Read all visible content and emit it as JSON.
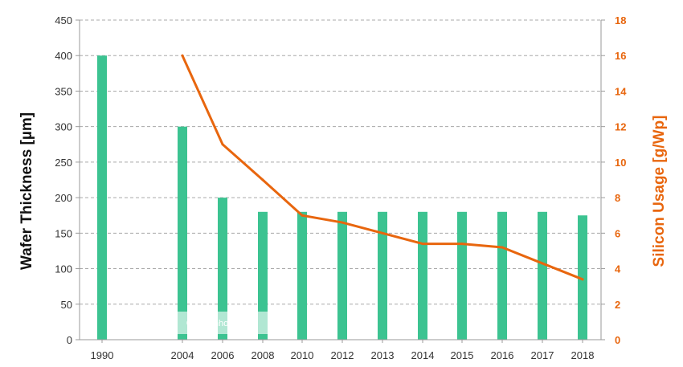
{
  "chart_data": {
    "type": "bar",
    "categories": [
      "1990",
      "2004",
      "2006",
      "2008",
      "2010",
      "2012",
      "2013",
      "2014",
      "2015",
      "2016",
      "2017",
      "2018"
    ],
    "series": [
      {
        "name": "Wafer Thickness [µm]",
        "type": "bar",
        "axis": "left",
        "values": [
          400,
          300,
          200,
          180,
          180,
          180,
          180,
          180,
          180,
          180,
          180,
          175
        ]
      },
      {
        "name": "Silicon Usage [g/Wp]",
        "type": "line",
        "axis": "right",
        "values": [
          null,
          16,
          11,
          9,
          7,
          6.6,
          6,
          5.4,
          5.4,
          5.2,
          4.3,
          3.4
        ]
      }
    ],
    "ylabel": "Wafer Thickness [µm]",
    "y2label": "Silicon Usage [g/Wp]",
    "ylim": [
      0,
      450
    ],
    "y2lim": [
      0,
      18
    ],
    "yticks": [
      "0",
      "50",
      "100",
      "150",
      "200",
      "250",
      "300",
      "350",
      "400",
      "450"
    ],
    "y2ticks": [
      "0",
      "2",
      "4",
      "6",
      "8",
      "10",
      "12",
      "14",
      "16",
      "18"
    ],
    "grid": "horizontal-dashed",
    "watermark": "© Fraunhofer ISE",
    "colors": {
      "bar": "#3cc391",
      "line": "#e8660e",
      "right_axis": "#e8660e",
      "grid": "#a8a8a8"
    }
  }
}
